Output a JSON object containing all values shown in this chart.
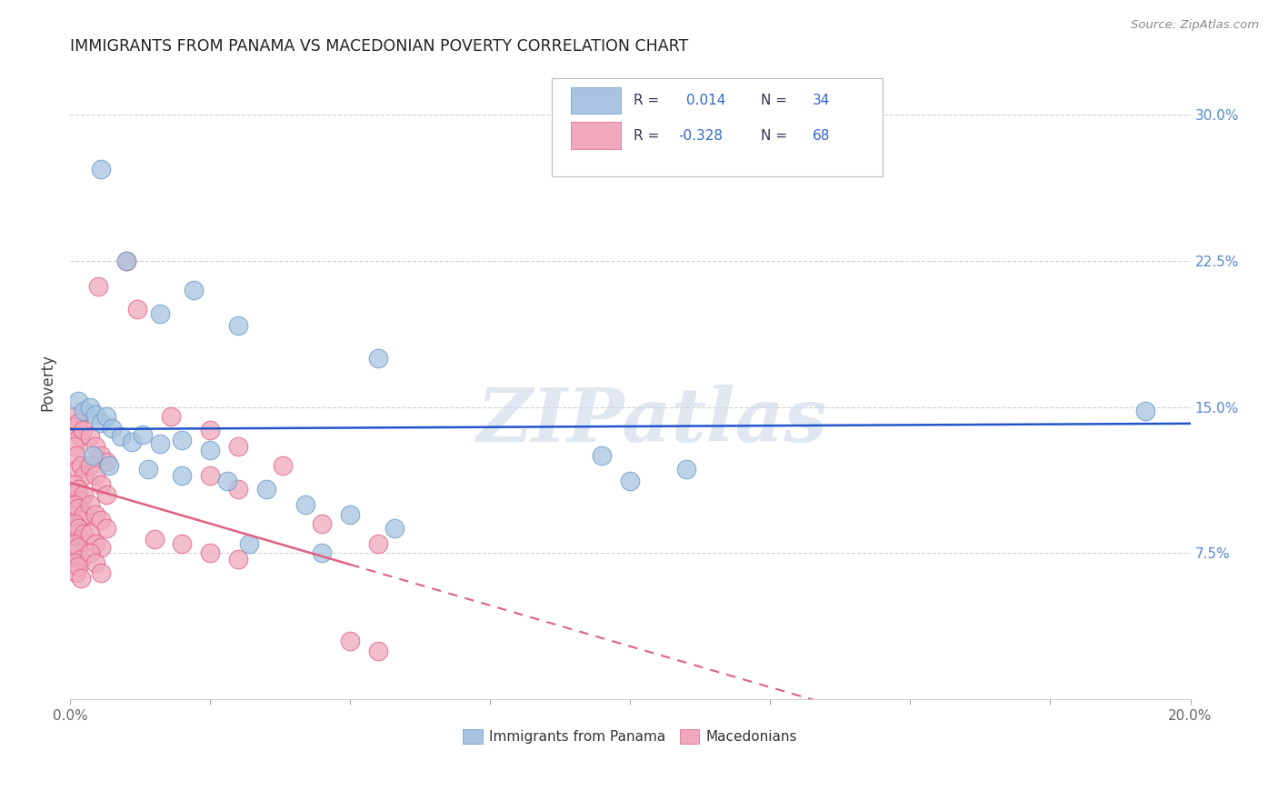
{
  "title": "IMMIGRANTS FROM PANAMA VS MACEDONIAN POVERTY CORRELATION CHART",
  "source": "Source: ZipAtlas.com",
  "xlabel_ticks": [
    "0.0%",
    "",
    "",
    "",
    "",
    "",
    "",
    "",
    "",
    "20.0%"
  ],
  "xlabel_tick_vals": [
    0.0,
    2.5,
    5.0,
    7.5,
    10.0,
    12.5,
    15.0,
    17.5,
    20.0
  ],
  "ylabel_ticks": [
    "7.5%",
    "15.0%",
    "22.5%",
    "30.0%"
  ],
  "ylabel_tick_vals": [
    7.5,
    15.0,
    22.5,
    30.0
  ],
  "xlim": [
    0.0,
    20.0
  ],
  "ylim": [
    0.0,
    32.5
  ],
  "blue_label": "Immigrants from Panama",
  "pink_label": "Macedonians",
  "blue_R": 0.014,
  "blue_N": 34,
  "pink_R": -0.328,
  "pink_N": 68,
  "blue_color": "#a8c4e0",
  "pink_color": "#f0a8bc",
  "blue_edge_color": "#6699cc",
  "pink_edge_color": "#e06080",
  "blue_line_color": "#2255cc",
  "pink_line_color": "#e06080",
  "legend_R_color": "#3366cc",
  "legend_dark_color": "#333355",
  "watermark_color": "#ccd8e8",
  "blue_dots": [
    [
      0.55,
      27.2
    ],
    [
      0.15,
      15.3
    ],
    [
      0.25,
      14.8
    ],
    [
      0.35,
      15.0
    ],
    [
      0.45,
      14.6
    ],
    [
      0.55,
      14.2
    ],
    [
      0.65,
      14.5
    ],
    [
      0.75,
      13.9
    ],
    [
      0.9,
      13.5
    ],
    [
      1.1,
      13.2
    ],
    [
      1.3,
      13.6
    ],
    [
      1.6,
      13.1
    ],
    [
      2.0,
      13.3
    ],
    [
      2.5,
      12.8
    ],
    [
      1.0,
      22.5
    ],
    [
      2.2,
      21.0
    ],
    [
      1.6,
      19.8
    ],
    [
      3.0,
      19.2
    ],
    [
      5.5,
      17.5
    ],
    [
      0.4,
      12.5
    ],
    [
      0.7,
      12.0
    ],
    [
      1.4,
      11.8
    ],
    [
      2.0,
      11.5
    ],
    [
      2.8,
      11.2
    ],
    [
      3.5,
      10.8
    ],
    [
      4.2,
      10.0
    ],
    [
      5.0,
      9.5
    ],
    [
      5.8,
      8.8
    ],
    [
      3.2,
      8.0
    ],
    [
      4.5,
      7.5
    ],
    [
      9.5,
      12.5
    ],
    [
      11.0,
      11.8
    ],
    [
      19.2,
      14.8
    ],
    [
      10.0,
      11.2
    ]
  ],
  "pink_dots": [
    [
      0.08,
      14.5
    ],
    [
      0.12,
      14.0
    ],
    [
      0.15,
      14.2
    ],
    [
      0.18,
      13.5
    ],
    [
      0.22,
      13.8
    ],
    [
      0.08,
      13.0
    ],
    [
      0.12,
      12.5
    ],
    [
      0.15,
      11.8
    ],
    [
      0.2,
      12.0
    ],
    [
      0.25,
      11.5
    ],
    [
      0.08,
      11.0
    ],
    [
      0.12,
      10.5
    ],
    [
      0.15,
      10.8
    ],
    [
      0.2,
      10.2
    ],
    [
      0.25,
      10.5
    ],
    [
      0.08,
      10.0
    ],
    [
      0.12,
      9.5
    ],
    [
      0.15,
      9.8
    ],
    [
      0.2,
      9.2
    ],
    [
      0.25,
      9.5
    ],
    [
      0.08,
      9.0
    ],
    [
      0.12,
      8.5
    ],
    [
      0.15,
      8.8
    ],
    [
      0.2,
      8.2
    ],
    [
      0.25,
      8.5
    ],
    [
      0.08,
      8.0
    ],
    [
      0.12,
      7.5
    ],
    [
      0.15,
      7.8
    ],
    [
      0.2,
      7.2
    ],
    [
      0.08,
      7.0
    ],
    [
      0.12,
      6.5
    ],
    [
      0.15,
      6.8
    ],
    [
      0.2,
      6.2
    ],
    [
      0.35,
      13.5
    ],
    [
      0.45,
      13.0
    ],
    [
      0.55,
      12.5
    ],
    [
      0.65,
      12.2
    ],
    [
      0.35,
      12.0
    ],
    [
      0.45,
      11.5
    ],
    [
      0.55,
      11.0
    ],
    [
      0.65,
      10.5
    ],
    [
      0.35,
      10.0
    ],
    [
      0.45,
      9.5
    ],
    [
      0.55,
      9.2
    ],
    [
      0.65,
      8.8
    ],
    [
      0.35,
      8.5
    ],
    [
      0.45,
      8.0
    ],
    [
      0.55,
      7.8
    ],
    [
      0.35,
      7.5
    ],
    [
      0.45,
      7.0
    ],
    [
      0.55,
      6.5
    ],
    [
      1.0,
      22.5
    ],
    [
      0.5,
      21.2
    ],
    [
      1.2,
      20.0
    ],
    [
      1.8,
      14.5
    ],
    [
      2.5,
      13.8
    ],
    [
      3.0,
      13.0
    ],
    [
      3.8,
      12.0
    ],
    [
      2.5,
      11.5
    ],
    [
      3.0,
      10.8
    ],
    [
      1.5,
      8.2
    ],
    [
      2.0,
      8.0
    ],
    [
      2.5,
      7.5
    ],
    [
      3.0,
      7.2
    ],
    [
      4.5,
      9.0
    ],
    [
      5.5,
      8.0
    ],
    [
      5.0,
      3.0
    ],
    [
      5.5,
      2.5
    ]
  ]
}
